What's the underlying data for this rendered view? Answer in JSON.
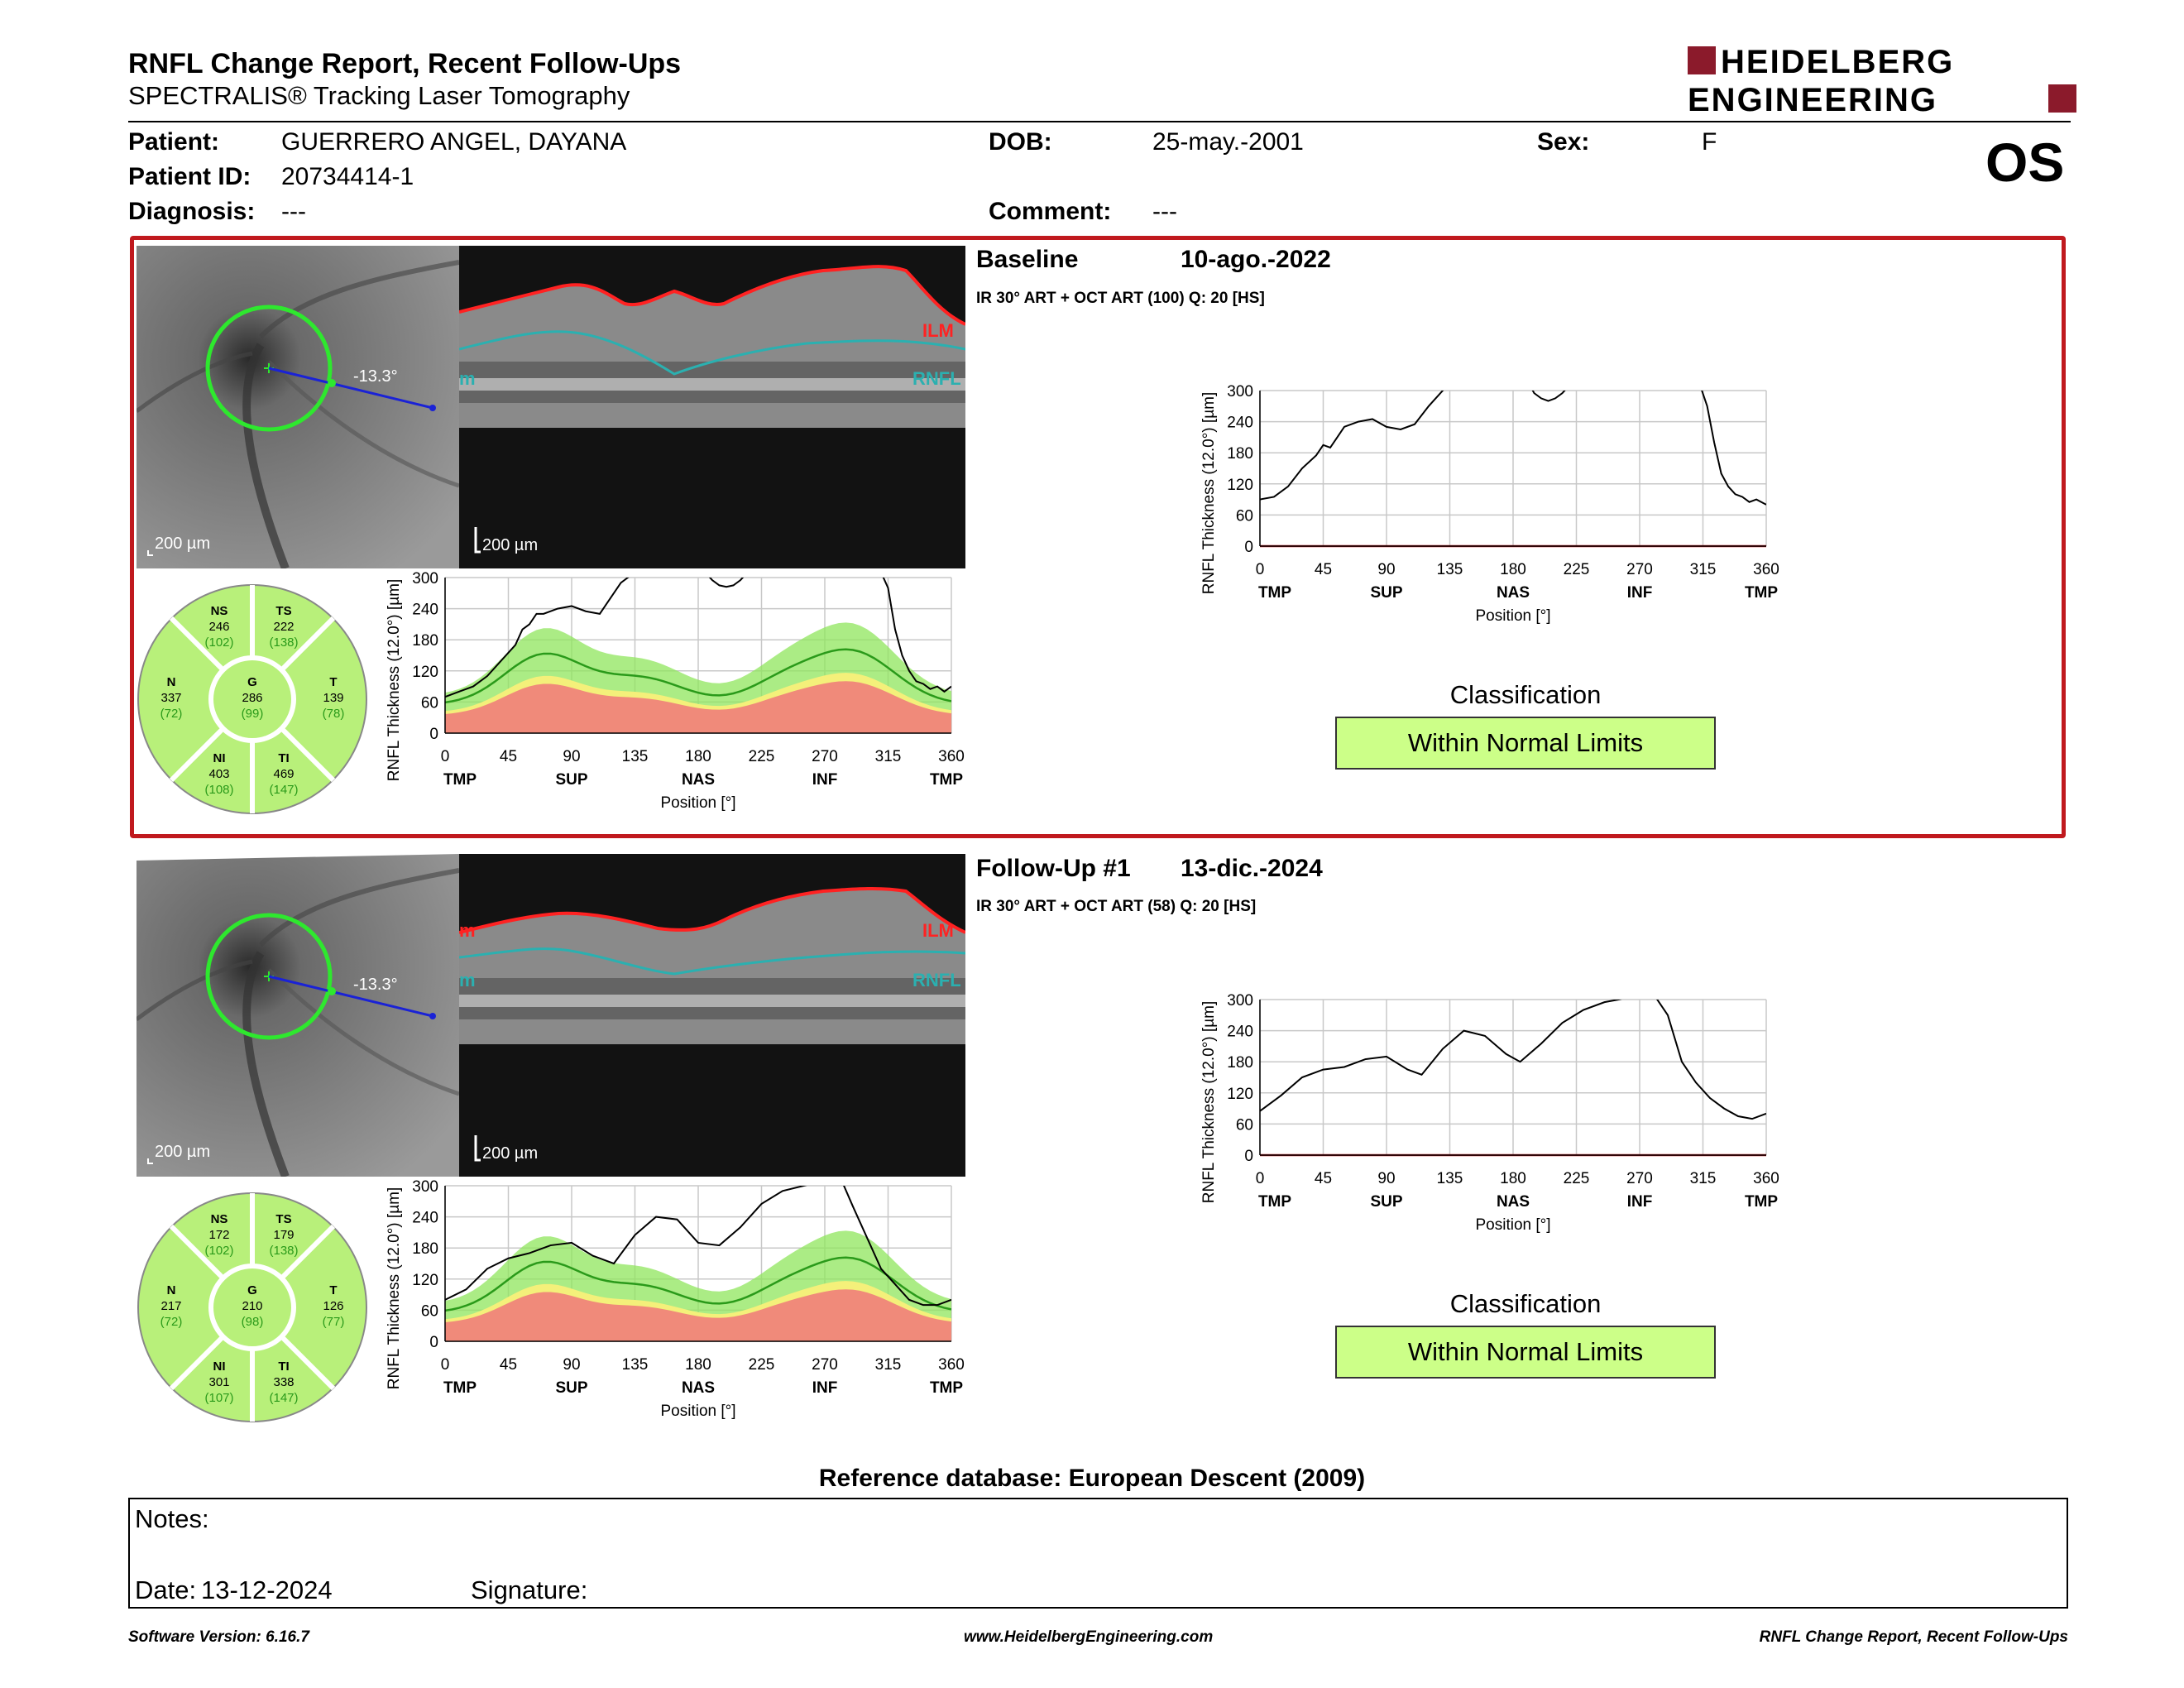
{
  "header": {
    "title": "RNFL Change Report, Recent Follow-Ups",
    "subtitle": "SPECTRALIS® Tracking Laser Tomography",
    "logo_line1": "HEIDELBERG",
    "logo_line2": "ENGINEERING",
    "eye": "OS"
  },
  "patient": {
    "name_label": "Patient:",
    "name": "GUERRERO ANGEL, DAYANA",
    "id_label": "Patient ID:",
    "id": "20734414-1",
    "diagnosis_label": "Diagnosis:",
    "diagnosis": "---",
    "dob_label": "DOB:",
    "dob": "25-may.-2001",
    "comment_label": "Comment:",
    "comment": "---",
    "sex_label": "Sex:",
    "sex": "F"
  },
  "exams": [
    {
      "name": "Baseline",
      "date": "10-ago.-2022",
      "scan_info": "IR 30° ART + OCT ART (100)  Q: 20 [HS]",
      "angle": "-13.3°",
      "fundus_scale": "200 µm",
      "oct_scale": "200 µm",
      "oct_labels": {
        "ilm": "ILM",
        "rnfl": "RNFL",
        "left": "m"
      },
      "sectors": {
        "NS": {
          "label": "NS",
          "value": "246",
          "ref": "(102)"
        },
        "TS": {
          "label": "TS",
          "value": "222",
          "ref": "(138)"
        },
        "N": {
          "label": "N",
          "value": "337",
          "ref": "(72)"
        },
        "G": {
          "label": "G",
          "value": "286",
          "ref": "(99)"
        },
        "T": {
          "label": "T",
          "value": "139",
          "ref": "(78)"
        },
        "NI": {
          "label": "NI",
          "value": "403",
          "ref": "(108)"
        },
        "TI": {
          "label": "TI",
          "value": "469",
          "ref": "(147)"
        }
      },
      "classification_title": "Classification",
      "classification": "Within Normal Limits"
    },
    {
      "name": "Follow-Up #1",
      "date": "13-dic.-2024",
      "scan_info": "IR 30° ART + OCT ART (58)  Q: 20 [HS]",
      "angle": "-13.3°",
      "fundus_scale": "200 µm",
      "oct_scale": "200 µm",
      "oct_labels": {
        "ilm": "ILM",
        "rnfl": "RNFL",
        "left": "m"
      },
      "sectors": {
        "NS": {
          "label": "NS",
          "value": "172",
          "ref": "(102)"
        },
        "TS": {
          "label": "TS",
          "value": "179",
          "ref": "(138)"
        },
        "N": {
          "label": "N",
          "value": "217",
          "ref": "(72)"
        },
        "G": {
          "label": "G",
          "value": "210",
          "ref": "(98)"
        },
        "T": {
          "label": "T",
          "value": "126",
          "ref": "(77)"
        },
        "NI": {
          "label": "NI",
          "value": "301",
          "ref": "(107)"
        },
        "TI": {
          "label": "TI",
          "value": "338",
          "ref": "(147)"
        }
      },
      "classification_title": "Classification",
      "classification": "Within Normal Limits"
    }
  ],
  "chart_data": [
    {
      "type": "line",
      "id": "baseline-small",
      "ylabel": "RNFL Thickness (12.0°) [µm]",
      "xlabel": "Position [°]",
      "xticks": [
        0,
        45,
        90,
        135,
        180,
        225,
        270,
        315,
        360
      ],
      "yticks": [
        0,
        60,
        120,
        180,
        240,
        300
      ],
      "sectors": [
        "TMP",
        "SUP",
        "NAS",
        "INF",
        "TMP"
      ],
      "xlim": [
        0,
        360
      ],
      "ylim": [
        0,
        300
      ],
      "series": [
        {
          "values_x": [
            0,
            10,
            20,
            30,
            40,
            50,
            55,
            60,
            65,
            70,
            80,
            90,
            100,
            110,
            115,
            120,
            125,
            130,
            135
          ],
          "values_y": [
            70,
            80,
            90,
            110,
            140,
            170,
            200,
            210,
            230,
            230,
            240,
            245,
            235,
            230,
            250,
            270,
            290,
            300,
            310
          ]
        },
        {
          "values_x": [
            310,
            315,
            320,
            325,
            330,
            335,
            340,
            345,
            350,
            355,
            360
          ],
          "values_y": [
            310,
            280,
            200,
            150,
            120,
            100,
            95,
            85,
            90,
            80,
            90
          ]
        },
        {
          "values_x": [
            185,
            190,
            195,
            200,
            205,
            210,
            215
          ],
          "values_y": [
            310,
            295,
            285,
            282,
            285,
            295,
            310
          ]
        }
      ]
    },
    {
      "type": "line",
      "id": "baseline-large",
      "ylabel": "RNFL Thickness (12.0°) [µm]",
      "xlabel": "Position [°]",
      "xticks": [
        0,
        45,
        90,
        135,
        180,
        225,
        270,
        315,
        360
      ],
      "yticks": [
        0,
        60,
        120,
        180,
        240,
        300
      ],
      "sectors": [
        "TMP",
        "SUP",
        "NAS",
        "INF",
        "TMP"
      ],
      "xlim": [
        0,
        360
      ],
      "ylim": [
        0,
        300
      ],
      "series": [
        {
          "values_x": [
            0,
            10,
            20,
            30,
            40,
            45,
            50,
            55,
            60,
            70,
            80,
            90,
            100,
            110,
            120,
            130,
            135
          ],
          "values_y": [
            90,
            95,
            115,
            150,
            175,
            195,
            190,
            210,
            230,
            240,
            245,
            230,
            225,
            235,
            270,
            300,
            315
          ]
        },
        {
          "values_x": [
            192,
            195,
            200,
            205,
            210,
            215,
            220
          ],
          "values_y": [
            310,
            295,
            285,
            280,
            285,
            295,
            310
          ]
        },
        {
          "values_x": [
            313,
            318,
            323,
            328,
            333,
            338,
            343,
            348,
            353,
            360
          ],
          "values_y": [
            310,
            270,
            200,
            140,
            115,
            100,
            95,
            85,
            90,
            80
          ]
        }
      ]
    },
    {
      "type": "line",
      "id": "followup-small",
      "ylabel": "RNFL Thickness (12.0°) [µm]",
      "xlabel": "Position [°]",
      "xticks": [
        0,
        45,
        90,
        135,
        180,
        225,
        270,
        315,
        360
      ],
      "yticks": [
        0,
        60,
        120,
        180,
        240,
        300
      ],
      "sectors": [
        "TMP",
        "SUP",
        "NAS",
        "INF",
        "TMP"
      ],
      "xlim": [
        0,
        360
      ],
      "ylim": [
        0,
        300
      ],
      "series": [
        {
          "values_x": [
            0,
            15,
            30,
            45,
            60,
            75,
            90,
            105,
            120,
            135,
            150,
            165,
            180,
            195,
            210,
            225,
            240,
            255,
            270,
            282,
            290,
            300,
            310,
            320,
            330,
            340,
            350,
            360
          ],
          "values_y": [
            80,
            100,
            140,
            160,
            170,
            185,
            190,
            165,
            150,
            205,
            240,
            235,
            190,
            185,
            220,
            265,
            290,
            300,
            310,
            310,
            260,
            200,
            140,
            110,
            80,
            70,
            70,
            80
          ]
        }
      ]
    },
    {
      "type": "line",
      "id": "followup-large",
      "ylabel": "RNFL Thickness (12.0°) [µm]",
      "xlabel": "Position [°]",
      "xticks": [
        0,
        45,
        90,
        135,
        180,
        225,
        270,
        315,
        360
      ],
      "yticks": [
        0,
        60,
        120,
        180,
        240,
        300
      ],
      "sectors": [
        "TMP",
        "SUP",
        "NAS",
        "INF",
        "TMP"
      ],
      "xlim": [
        0,
        360
      ],
      "ylim": [
        0,
        300
      ],
      "series": [
        {
          "values_x": [
            0,
            15,
            30,
            45,
            60,
            75,
            90,
            105,
            115,
            130,
            145,
            160,
            175,
            185,
            200,
            215,
            230,
            245,
            255,
            270,
            280,
            290,
            300,
            310,
            320,
            330,
            340,
            350,
            360
          ],
          "values_y": [
            85,
            115,
            150,
            165,
            170,
            185,
            190,
            165,
            155,
            205,
            240,
            230,
            195,
            180,
            215,
            255,
            280,
            295,
            300,
            310,
            310,
            270,
            180,
            140,
            110,
            90,
            75,
            70,
            80
          ]
        }
      ]
    }
  ],
  "reference_db": "Reference database: European Descent (2009)",
  "notes": {
    "notes_label": "Notes:",
    "date_label": "Date:",
    "date_value": "13-12-2024",
    "signature_label": "Signature:"
  },
  "footer": {
    "version": "Software Version: 6.16.7",
    "url": "www.HeidelbergEngineering.com",
    "report": "RNFL Change Report, Recent Follow-Ups"
  },
  "colors": {
    "accent_red": "#c0191e",
    "wnl_green": "#ccff88",
    "sector_green": "#b8f07a",
    "band_green": "#8fe65c",
    "band_yellow": "#f4f07a",
    "band_red": "#f08a7a",
    "ilm_red": "#ff2222",
    "rnfl_cyan": "#2bb0b0"
  }
}
